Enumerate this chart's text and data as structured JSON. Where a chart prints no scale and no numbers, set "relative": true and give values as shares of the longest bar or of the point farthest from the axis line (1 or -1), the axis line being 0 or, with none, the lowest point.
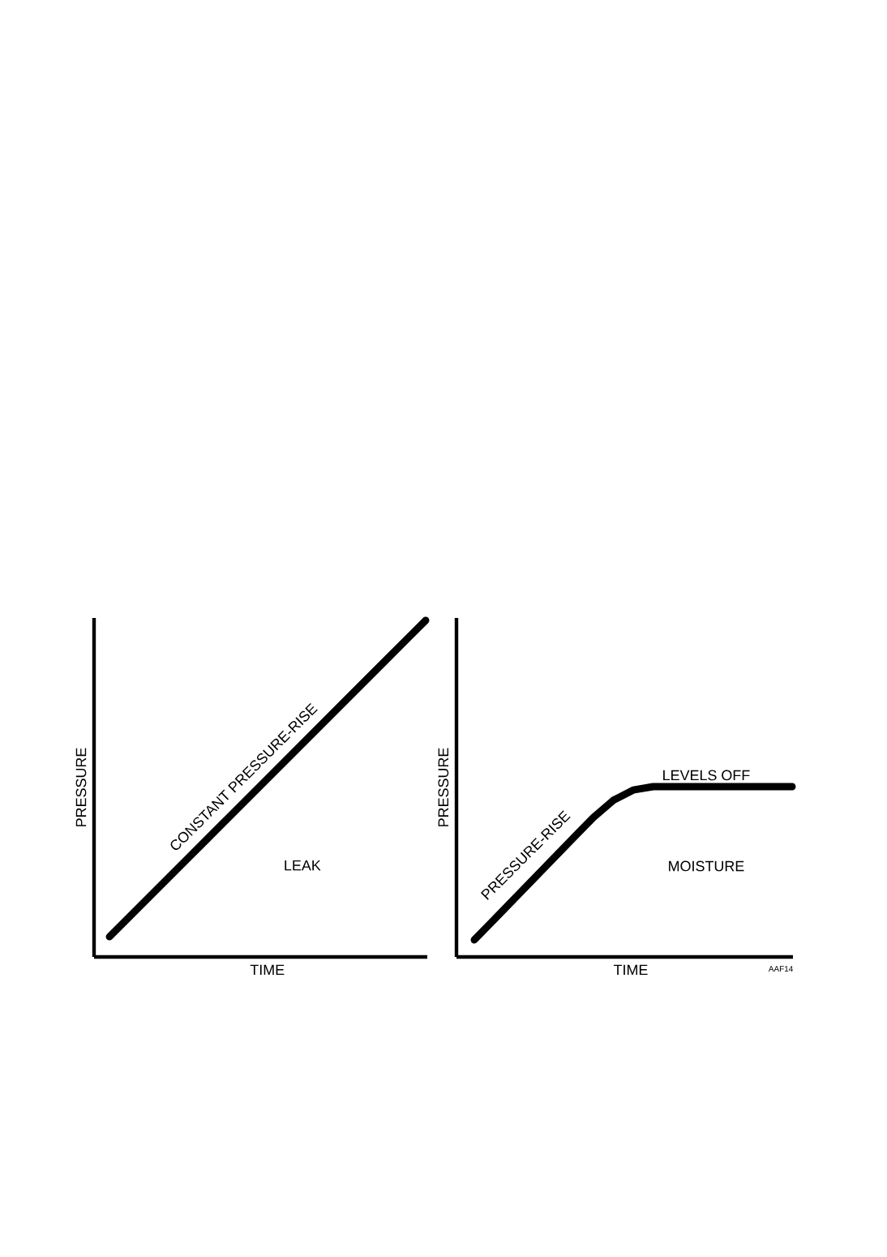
{
  "chart_data": [
    {
      "type": "line",
      "relative": true,
      "xlabel": "TIME",
      "ylabel": "PRESSURE",
      "categories": [
        null,
        null,
        null,
        null,
        null,
        null,
        null,
        null,
        null
      ],
      "color": "#000000",
      "values": [
        0.06,
        0.1775,
        0.295,
        0.4125,
        0.53,
        0.6475,
        0.765,
        0.8825,
        1
      ],
      "annotations": [
        "CONSTANT  PRESSURE-RISE",
        "LEAK"
      ]
    },
    {
      "type": "line",
      "relative": true,
      "xlabel": "TIME",
      "ylabel": "PRESSURE",
      "categories": [
        null,
        null,
        null,
        null,
        null,
        null,
        null,
        null,
        null,
        null,
        null,
        null,
        null,
        null,
        null,
        null,
        null
      ],
      "color": "#000000",
      "values": [
        0.1,
        0.22,
        0.34,
        0.46,
        0.58,
        0.7,
        0.82,
        0.92,
        0.98,
        1,
        1,
        1,
        1,
        1,
        1,
        1,
        1
      ],
      "annotations": [
        "PRESSURE-RISE",
        "LEVELS OFF",
        "MOISTURE",
        "AAF14"
      ]
    }
  ]
}
